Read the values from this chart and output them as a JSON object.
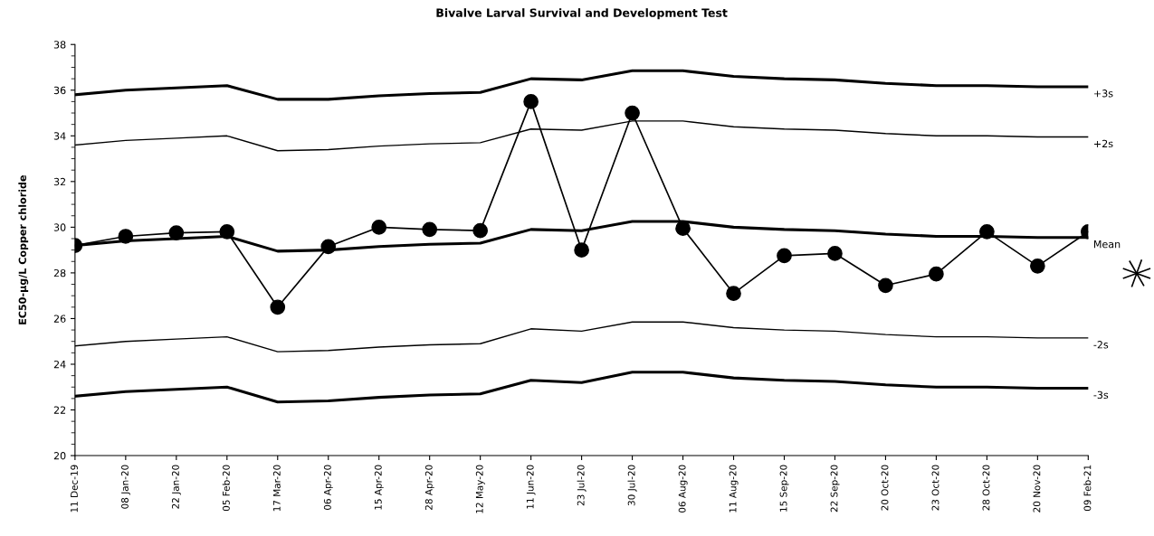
{
  "chart_data": {
    "type": "line",
    "title": "Bivalve Larval Survival and Development Test",
    "ylabel": "EC50-µg/L Copper chloride",
    "categories": [
      "11 Dec-19",
      "08 Jan-20",
      "22 Jan-20",
      "05 Feb-20",
      "17 Mar-20",
      "06 Apr-20",
      "15 Apr-20",
      "28 Apr-20",
      "12 May-20",
      "11 Jun-20",
      "23 Jul-20",
      "30 Jul-20",
      "06 Aug-20",
      "11 Aug-20",
      "15 Sep-20",
      "22 Sep-20",
      "20 Oct-20",
      "23 Oct-20",
      "28 Oct-20",
      "20 Nov-20",
      "09 Feb-21"
    ],
    "series": [
      {
        "name": "+3s",
        "color": "#000000",
        "marker": "none",
        "values": [
          35.8,
          36.0,
          36.1,
          36.2,
          35.6,
          35.6,
          35.75,
          35.85,
          35.9,
          36.5,
          36.45,
          36.85,
          36.85,
          36.6,
          36.5,
          36.45,
          36.3,
          36.2,
          36.2,
          36.15,
          36.15
        ]
      },
      {
        "name": "+2s",
        "color": "#000000",
        "marker": "none",
        "values": [
          33.6,
          33.8,
          33.9,
          34.0,
          33.35,
          33.4,
          33.55,
          33.65,
          33.7,
          34.3,
          34.25,
          34.65,
          34.65,
          34.4,
          34.3,
          34.25,
          34.1,
          34.0,
          34.0,
          33.95,
          33.95
        ]
      },
      {
        "name": "Mean",
        "color": "#000000",
        "marker": "none",
        "values": [
          29.2,
          29.4,
          29.5,
          29.6,
          28.95,
          29.0,
          29.15,
          29.25,
          29.3,
          29.9,
          29.85,
          30.25,
          30.25,
          30.0,
          29.9,
          29.85,
          29.7,
          29.6,
          29.6,
          29.55,
          29.55
        ]
      },
      {
        "name": "-2s",
        "color": "#000000",
        "marker": "none",
        "values": [
          24.8,
          25.0,
          25.1,
          25.2,
          24.55,
          24.6,
          24.75,
          24.85,
          24.9,
          25.55,
          25.45,
          25.85,
          25.85,
          25.6,
          25.5,
          25.45,
          25.3,
          25.2,
          25.2,
          25.15,
          25.15
        ]
      },
      {
        "name": "-3s",
        "color": "#000000",
        "marker": "none",
        "values": [
          22.6,
          22.8,
          22.9,
          23.0,
          22.35,
          22.4,
          22.55,
          22.65,
          22.7,
          23.3,
          23.2,
          23.65,
          23.65,
          23.4,
          23.3,
          23.25,
          23.1,
          23.0,
          23.0,
          22.95,
          22.95
        ]
      },
      {
        "color": "#000000",
        "marker": "circle",
        "values": [
          29.2,
          29.6,
          29.75,
          29.8,
          26.5,
          29.15,
          30.0,
          29.9,
          29.85,
          35.5,
          29.0,
          35.0,
          29.95,
          27.1,
          28.75,
          28.85,
          27.45,
          27.95,
          29.8,
          28.3,
          29.8
        ]
      }
    ],
    "ylim": [
      20,
      38
    ],
    "yticks": [
      20,
      22,
      24,
      26,
      28,
      30,
      32,
      34,
      36,
      38
    ],
    "grid": false,
    "legend": false,
    "line_style": "solid"
  }
}
